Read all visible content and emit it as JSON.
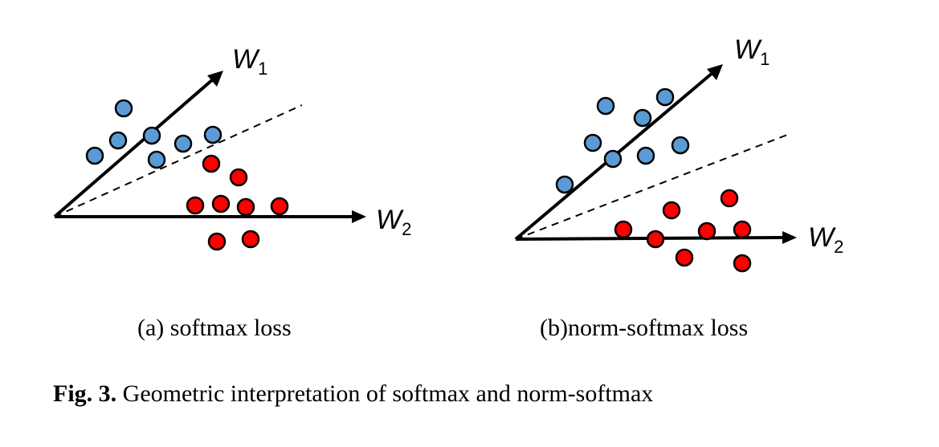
{
  "panels": [
    {
      "id": "a",
      "subcaption": "(a) softmax loss",
      "w1": {
        "letter": "W",
        "sub": "1"
      },
      "w2": {
        "letter": "W",
        "sub": "2"
      }
    },
    {
      "id": "b",
      "subcaption": "(b)norm-softmax loss",
      "w1": {
        "letter": "W",
        "sub": "1"
      },
      "w2": {
        "letter": "W",
        "sub": "2"
      }
    }
  ],
  "caption": {
    "label": "Fig. 3.",
    "text": "Geometric interpretation of softmax and norm-softmax"
  },
  "colors": {
    "class1": "#5b9bd5",
    "class2": "#ff0000",
    "stroke": "#000000"
  }
}
